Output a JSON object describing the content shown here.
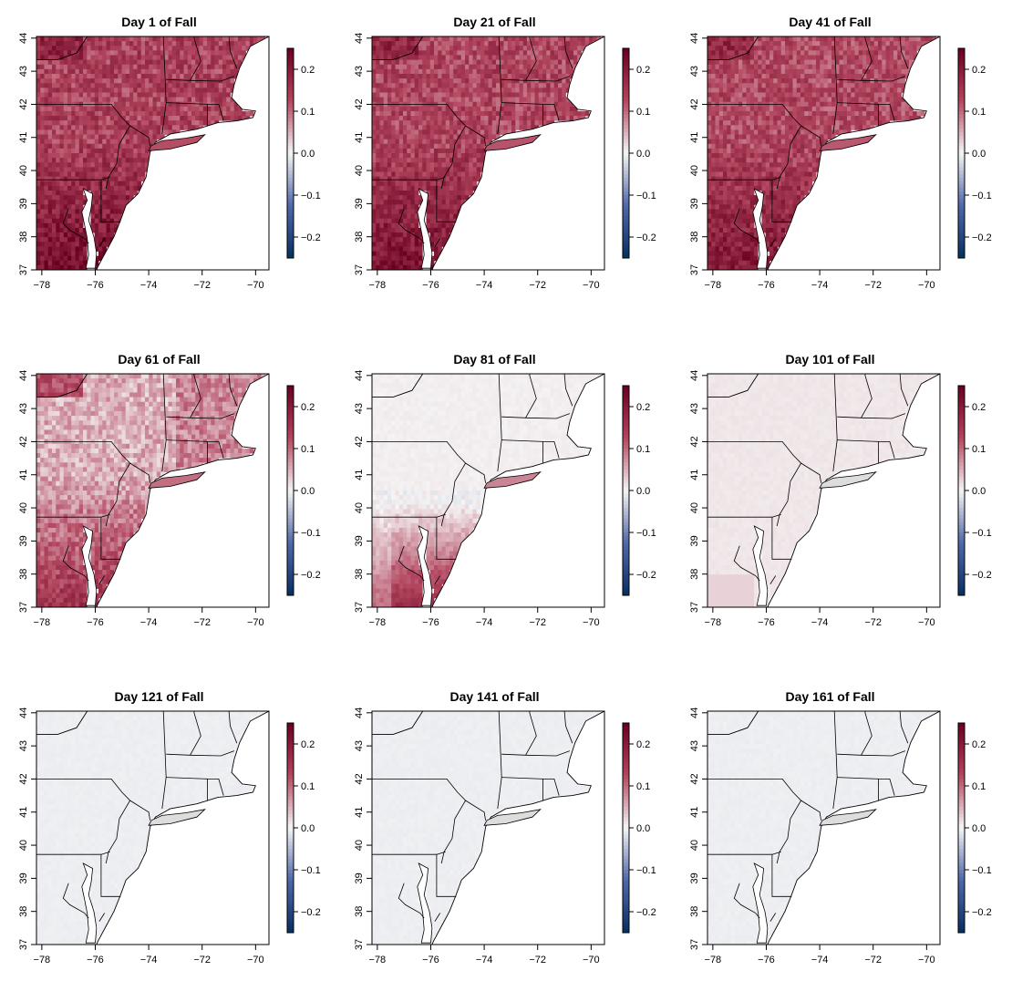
{
  "figure": {
    "legend_placement": "right of each panel"
  },
  "colors": {
    "high": "#67001F",
    "mid_high": "#B2465F",
    "zero": "#F5F5F5",
    "mid_low": "#5168A8",
    "low": "#053061",
    "ocean": "#FFFFFF",
    "border": "#000000"
  },
  "chart_data": [
    {
      "type": "heatmap",
      "title": "Day 1 of Fall",
      "intensity": 0.6,
      "pattern": "full",
      "xlim": [
        -78.2,
        -69.5
      ],
      "ylim": [
        37,
        44
      ],
      "xticks": [
        "−78",
        "−76",
        "−74",
        "−72",
        "−70"
      ],
      "yticks": [
        "37",
        "38",
        "39",
        "40",
        "41",
        "42",
        "43",
        "44"
      ],
      "colorbar": {
        "min": -0.25,
        "max": 0.25,
        "ticks": [
          "0.2",
          "0.1",
          "0.0",
          "−0.1",
          "−0.2"
        ]
      }
    },
    {
      "type": "heatmap",
      "title": "Day 21 of Fall",
      "intensity": 0.58,
      "pattern": "full",
      "xlim": [
        -78.2,
        -69.5
      ],
      "ylim": [
        37,
        44
      ],
      "xticks": [
        "−78",
        "−76",
        "−74",
        "−72",
        "−70"
      ],
      "yticks": [
        "37",
        "38",
        "39",
        "40",
        "41",
        "42",
        "43",
        "44"
      ],
      "colorbar": {
        "min": -0.25,
        "max": 0.25,
        "ticks": [
          "0.2",
          "0.1",
          "0.0",
          "−0.1",
          "−0.2"
        ]
      }
    },
    {
      "type": "heatmap",
      "title": "Day 41 of Fall",
      "intensity": 0.56,
      "pattern": "full",
      "xlim": [
        -78.2,
        -69.5
      ],
      "ylim": [
        37,
        44
      ],
      "xticks": [
        "−78",
        "−76",
        "−74",
        "−72",
        "−70"
      ],
      "yticks": [
        "37",
        "38",
        "39",
        "40",
        "41",
        "42",
        "43",
        "44"
      ],
      "colorbar": {
        "min": -0.25,
        "max": 0.25,
        "ticks": [
          "0.2",
          "0.1",
          "0.0",
          "−0.1",
          "−0.2"
        ]
      }
    },
    {
      "type": "heatmap",
      "title": "Day 61 of Fall",
      "intensity": 0.48,
      "pattern": "south",
      "xlim": [
        -78.2,
        -69.5
      ],
      "ylim": [
        37,
        44
      ],
      "xticks": [
        "−78",
        "−76",
        "−74",
        "−72",
        "−70"
      ],
      "yticks": [
        "37",
        "38",
        "39",
        "40",
        "41",
        "42",
        "43",
        "44"
      ],
      "colorbar": {
        "min": -0.25,
        "max": 0.25,
        "ticks": [
          "0.2",
          "0.1",
          "0.0",
          "−0.1",
          "−0.2"
        ]
      }
    },
    {
      "type": "heatmap",
      "title": "Day 81 of Fall",
      "intensity": 0.4,
      "pattern": "southeast",
      "xlim": [
        -78.2,
        -69.5
      ],
      "ylim": [
        37,
        44
      ],
      "xticks": [
        "−78",
        "−76",
        "−74",
        "−72",
        "−70"
      ],
      "yticks": [
        "37",
        "38",
        "39",
        "40",
        "41",
        "42",
        "43",
        "44"
      ],
      "colorbar": {
        "min": -0.25,
        "max": 0.25,
        "ticks": [
          "0.2",
          "0.1",
          "0.0",
          "−0.1",
          "−0.2"
        ]
      }
    },
    {
      "type": "heatmap",
      "title": "Day 101 of Fall",
      "intensity": 0.05,
      "pattern": "neutral",
      "xlim": [
        -78.2,
        -69.5
      ],
      "ylim": [
        37,
        44
      ],
      "xticks": [
        "−78",
        "−76",
        "−74",
        "−72",
        "−70"
      ],
      "yticks": [
        "37",
        "38",
        "39",
        "40",
        "41",
        "42",
        "43",
        "44"
      ],
      "colorbar": {
        "min": -0.25,
        "max": 0.25,
        "ticks": [
          "0.2",
          "0.1",
          "0.0",
          "−0.1",
          "−0.2"
        ]
      }
    },
    {
      "type": "heatmap",
      "title": "Day 121 of Fall",
      "intensity": -0.03,
      "pattern": "neutral",
      "xlim": [
        -78.2,
        -69.5
      ],
      "ylim": [
        37,
        44
      ],
      "xticks": [
        "−78",
        "−76",
        "−74",
        "−72",
        "−70"
      ],
      "yticks": [
        "37",
        "38",
        "39",
        "40",
        "41",
        "42",
        "43",
        "44"
      ],
      "colorbar": {
        "min": -0.25,
        "max": 0.25,
        "ticks": [
          "0.2",
          "0.1",
          "0.0",
          "−0.1",
          "−0.2"
        ]
      }
    },
    {
      "type": "heatmap",
      "title": "Day 141 of Fall",
      "intensity": -0.03,
      "pattern": "neutral",
      "xlim": [
        -78.2,
        -69.5
      ],
      "ylim": [
        37,
        44
      ],
      "xticks": [
        "−78",
        "−76",
        "−74",
        "−72",
        "−70"
      ],
      "yticks": [
        "37",
        "38",
        "39",
        "40",
        "41",
        "42",
        "43",
        "44"
      ],
      "colorbar": {
        "min": -0.25,
        "max": 0.25,
        "ticks": [
          "0.2",
          "0.1",
          "0.0",
          "−0.1",
          "−0.2"
        ]
      }
    },
    {
      "type": "heatmap",
      "title": "Day 161 of Fall",
      "intensity": -0.03,
      "pattern": "neutral",
      "xlim": [
        -78.2,
        -69.5
      ],
      "ylim": [
        37,
        44
      ],
      "xticks": [
        "−78",
        "−76",
        "−74",
        "−72",
        "−70"
      ],
      "yticks": [
        "37",
        "38",
        "39",
        "40",
        "41",
        "42",
        "43",
        "44"
      ],
      "colorbar": {
        "min": -0.25,
        "max": 0.25,
        "ticks": [
          "0.2",
          "0.1",
          "0.0",
          "−0.1",
          "−0.2"
        ]
      }
    }
  ]
}
